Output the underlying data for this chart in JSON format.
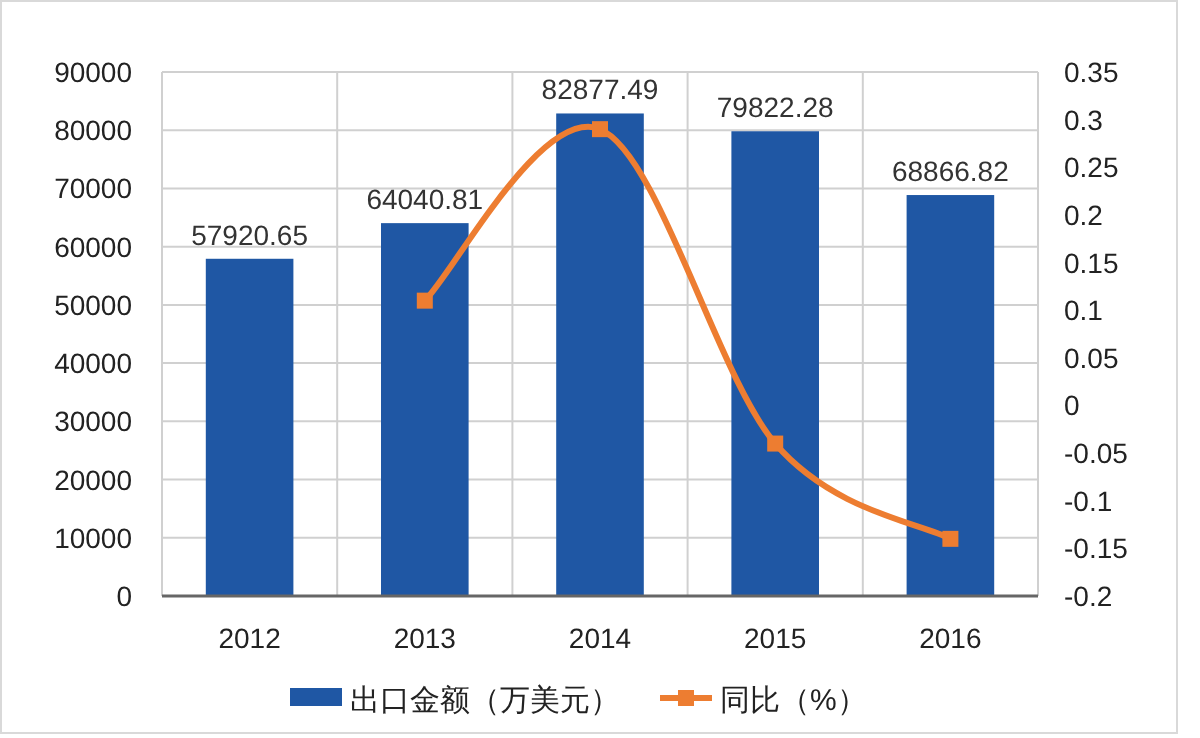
{
  "chart_data": {
    "type": "bar",
    "categories": [
      "2012",
      "2013",
      "2014",
      "2015",
      "2016"
    ],
    "series": [
      {
        "name": "出口金额（万美元）",
        "type": "bar",
        "color": "#1f57a4",
        "values": [
          57920.65,
          64040.81,
          82877.49,
          79822.28,
          68866.82
        ],
        "value_labels": [
          "57920.65",
          "64040.81",
          "82877.49",
          "79822.28",
          "68866.82"
        ]
      },
      {
        "name": "同比（%）",
        "type": "line",
        "axis": "y2",
        "color": "#ed7d31",
        "marker": "square",
        "values": [
          null,
          0.11,
          0.29,
          -0.04,
          -0.14
        ]
      }
    ],
    "ylim": [
      0,
      90000
    ],
    "yticks": [
      0,
      10000,
      20000,
      30000,
      40000,
      50000,
      60000,
      70000,
      80000,
      90000
    ],
    "y2lim": [
      -0.2,
      0.35
    ],
    "y2ticks": [
      -0.2,
      -0.15,
      -0.1,
      -0.05,
      0,
      0.05,
      0.1,
      0.15,
      0.2,
      0.25,
      0.3,
      0.35
    ],
    "grid": true,
    "legend": "bottom"
  }
}
